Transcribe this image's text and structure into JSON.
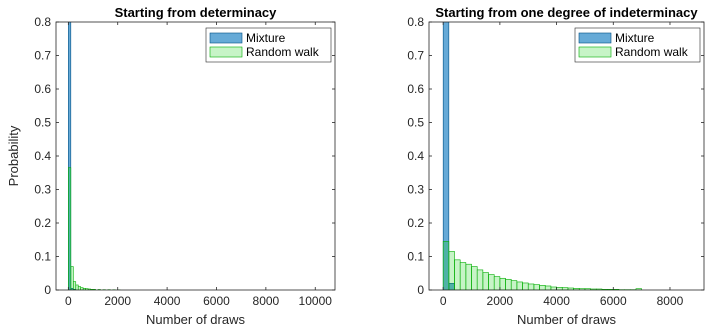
{
  "chart_data": [
    {
      "type": "bar",
      "title": "Starting from determinacy",
      "xlabel": "Number of draws",
      "ylabel": "Probability",
      "xlim": [
        -500,
        10800
      ],
      "ylim": [
        0,
        0.8
      ],
      "xticks": [
        0,
        2000,
        4000,
        6000,
        8000,
        10000
      ],
      "xtick_labels": [
        "0",
        "2000",
        "4000",
        "6000",
        "8000",
        "10000"
      ],
      "yticks": [
        0,
        0.1,
        0.2,
        0.3,
        0.4,
        0.5,
        0.6,
        0.7,
        0.8
      ],
      "ytick_labels": [
        "0",
        "0.1",
        "0.2",
        "0.3",
        "0.4",
        "0.5",
        "0.6",
        "0.7",
        "0.8"
      ],
      "bin_width": 100,
      "legend_position": "top-right",
      "grid": false,
      "series": [
        {
          "name": "Mixture",
          "color": "#0072BD",
          "bins": [
            [
              0,
              1.0
            ],
            [
              100,
              0.005
            ],
            [
              200,
              0.002
            ]
          ]
        },
        {
          "name": "Random walk",
          "color": "#00CC00",
          "bins": [
            [
              0,
              0.365
            ],
            [
              100,
              0.07
            ],
            [
              200,
              0.025
            ],
            [
              300,
              0.015
            ],
            [
              400,
              0.01
            ],
            [
              500,
              0.007
            ],
            [
              600,
              0.005
            ],
            [
              700,
              0.004
            ],
            [
              800,
              0.003
            ],
            [
              900,
              0.002
            ],
            [
              1000,
              0.002
            ],
            [
              1200,
              0.0015
            ],
            [
              1400,
              0.001
            ],
            [
              1600,
              0.001
            ],
            [
              1800,
              0.0008
            ],
            [
              2000,
              0.0005
            ]
          ]
        }
      ]
    },
    {
      "type": "bar",
      "title": "Starting from one degree of indeterminacy",
      "xlabel": "Number of draws",
      "ylabel": "",
      "xlim": [
        -500,
        9200
      ],
      "ylim": [
        0,
        0.8
      ],
      "xticks": [
        0,
        2000,
        4000,
        6000,
        8000
      ],
      "xtick_labels": [
        "0",
        "2000",
        "4000",
        "6000",
        "8000"
      ],
      "yticks": [
        0,
        0.1,
        0.2,
        0.3,
        0.4,
        0.5,
        0.6,
        0.7,
        0.8
      ],
      "ytick_labels": [
        "0",
        "0.1",
        "0.2",
        "0.3",
        "0.4",
        "0.5",
        "0.6",
        "0.7",
        "0.8"
      ],
      "bin_width": 200,
      "legend_position": "top-right",
      "grid": false,
      "series": [
        {
          "name": "Mixture",
          "color": "#0072BD",
          "bins": [
            [
              0,
              1.0
            ],
            [
              200,
              0.02
            ]
          ]
        },
        {
          "name": "Random walk",
          "color": "#00CC00",
          "bins": [
            [
              0,
              0.145
            ],
            [
              200,
              0.115
            ],
            [
              400,
              0.09
            ],
            [
              600,
              0.082
            ],
            [
              800,
              0.077
            ],
            [
              1000,
              0.07
            ],
            [
              1200,
              0.06
            ],
            [
              1400,
              0.052
            ],
            [
              1600,
              0.046
            ],
            [
              1800,
              0.04
            ],
            [
              2000,
              0.035
            ],
            [
              2200,
              0.032
            ],
            [
              2400,
              0.028
            ],
            [
              2600,
              0.024
            ],
            [
              2800,
              0.021
            ],
            [
              3000,
              0.018
            ],
            [
              3200,
              0.016
            ],
            [
              3400,
              0.014
            ],
            [
              3600,
              0.012
            ],
            [
              3800,
              0.009
            ],
            [
              4000,
              0.008
            ],
            [
              4200,
              0.007
            ],
            [
              4400,
              0.006
            ],
            [
              4600,
              0.005
            ],
            [
              4800,
              0.004
            ],
            [
              5000,
              0.004
            ],
            [
              5200,
              0.003
            ],
            [
              5400,
              0.003
            ],
            [
              5600,
              0.002
            ],
            [
              5800,
              0.002
            ],
            [
              6000,
              0.002
            ],
            [
              6200,
              0.001
            ],
            [
              6400,
              0.001
            ],
            [
              6600,
              0.001
            ],
            [
              6800,
              0.004
            ]
          ]
        }
      ]
    }
  ]
}
